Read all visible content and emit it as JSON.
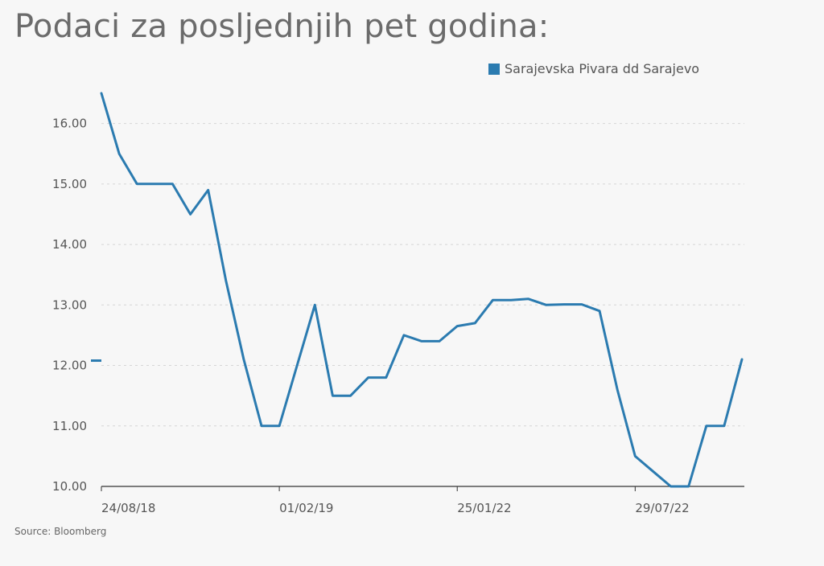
{
  "header": {
    "title": "Podaci za posljednjih pet godina:"
  },
  "footer": {
    "source": "Source: Bloomberg"
  },
  "chart_data": {
    "type": "line",
    "grid": true,
    "legend_position": "top-right",
    "ylim": [
      10,
      16.5
    ],
    "y_ticks": [
      10,
      11,
      12,
      13,
      14,
      15,
      16
    ],
    "y_tick_labels": [
      "10.00",
      "11.00",
      "12.00",
      "13.00",
      "14.00",
      "15.00",
      "16.00"
    ],
    "x_tick_labels": [
      "24/08/18",
      "01/02/19",
      "25/01/22",
      "29/07/22"
    ],
    "x_tick_positions": [
      0,
      10,
      20,
      30
    ],
    "last_value": 12.08,
    "series": [
      {
        "name": "Sarajevska Pivara dd Sarajevo",
        "color": "#2b7bb0",
        "values": [
          16.5,
          15.5,
          15.0,
          15.0,
          15.0,
          14.5,
          14.9,
          13.4,
          12.1,
          11.0,
          11.0,
          12.0,
          13.0,
          11.5,
          11.5,
          11.8,
          11.8,
          12.5,
          12.4,
          12.4,
          12.65,
          12.7,
          13.08,
          13.08,
          13.1,
          13.0,
          13.01,
          13.01,
          12.9,
          11.6,
          10.5,
          10.25,
          10.0,
          10.0,
          11.0,
          11.0,
          12.1
        ]
      }
    ]
  }
}
